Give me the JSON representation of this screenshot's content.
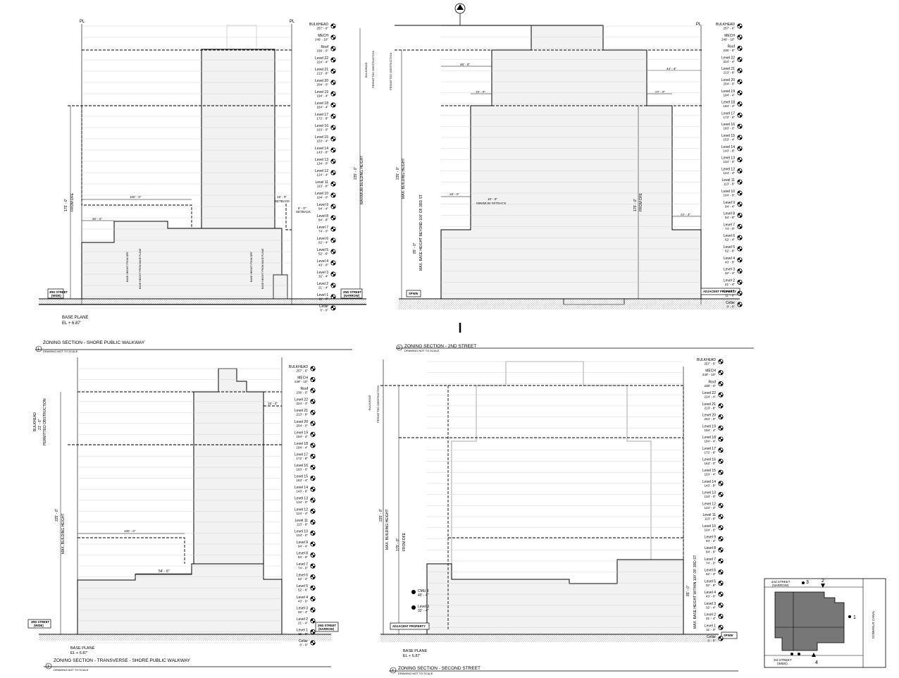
{
  "sheet": {
    "sections": [
      {
        "number": "1",
        "title": "ZONING SECTION - SHORE PUBLIC WALKWAY",
        "note": "DRAWING NOT TO SCALE"
      },
      {
        "number": "2",
        "title": "ZONING SECTION - 2ND STREET",
        "note": "DRAWING NOT TO SCALE"
      },
      {
        "number": "3",
        "title": "ZONING SECTION - TRANSVERSE - SHORE PUBLIC WALKWAY",
        "note": "DRAWING NOT TO SCALE"
      },
      {
        "number": "4",
        "title": "ZONING SECTION - SECOND STREET",
        "note": "DRAWING NOT TO SCALE"
      }
    ],
    "levels": [
      {
        "name": "BULKHEAD",
        "elev": "257' - 6\""
      },
      {
        "name": "MECH",
        "elev": "249' - 10\""
      },
      {
        "name": "Roof",
        "elev": "236' - 0\""
      },
      {
        "name": "Level 22",
        "elev": "224' - 4\""
      },
      {
        "name": "Level 21",
        "elev": "213' - 8\""
      },
      {
        "name": "Level 20",
        "elev": "204' - 0\""
      },
      {
        "name": "Level 19",
        "elev": "194' - 4\""
      },
      {
        "name": "Level 18",
        "elev": "184' - 4\""
      },
      {
        "name": "Level 17",
        "elev": "172' - 8\""
      },
      {
        "name": "Level 16",
        "elev": "163' - 0\""
      },
      {
        "name": "Level 15",
        "elev": "153' - 4\""
      },
      {
        "name": "Level 14",
        "elev": "143' - 8\""
      },
      {
        "name": "Level 13",
        "elev": "134' - 0\""
      },
      {
        "name": "Level 12",
        "elev": "124' - 4\""
      },
      {
        "name": "Level 11",
        "elev": "113' - 8\""
      },
      {
        "name": "Level 10",
        "elev": "104' - 0\""
      },
      {
        "name": "Level 9",
        "elev": "94' - 4\""
      },
      {
        "name": "Level 8",
        "elev": "84' - 8\""
      },
      {
        "name": "Level 7",
        "elev": "74' - 0\""
      },
      {
        "name": "Level 6",
        "elev": "62' - 4\""
      },
      {
        "name": "Level 5",
        "elev": "52' - 8\""
      },
      {
        "name": "Level 4",
        "elev": "43' - 0\""
      },
      {
        "name": "Level 3",
        "elev": "32' - 4\""
      },
      {
        "name": "Level 2",
        "elev": "21' - 4\""
      },
      {
        "name": "Level 1",
        "elev": "11' - 0\""
      },
      {
        "name": "Cellar",
        "elev": "0' - 0\""
      }
    ],
    "labels": {
      "pl": "PL",
      "base_plane": "BASE PLANE",
      "base_plane_el": "EL + 6.87'",
      "third_street": "3RD STREET",
      "wide": "(WIDE)",
      "second_street": "2ND STREET",
      "narrow": "(NARROW)",
      "setback": "SETBACK",
      "minimum_setback": "MINIMUM SETBACK",
      "spww": "SPWW",
      "adjacent_property": "ADJACENT PROPERTY",
      "max_building_height": "MAX. BUILDING HEIGHT",
      "maximum_building_height": "MAXIMUM BUILDING HEIGHT",
      "from_dfe": "FROM DFE",
      "permitted_obstruction": "PERMITTED OBSTRUCTION",
      "bulkhead": "BULKHEAD",
      "max_base_height_beyond": "MAX. BASE HEIGHT BEYOND 100' OF 3RD ST",
      "max_base_height_within": "MAX. BASE HEIGHT WITHIN 100' OF 3RD ST",
      "base_height_from_dfe": "BASE HEIGHT FROM DFE",
      "base_height_from_base_plane": "BASE HEIGHT FROM BASE PLANE",
      "gowanus_canal": "GOWANUS CANAL",
      "key_2nd": "2nd STREET",
      "key_narrow": "(NARROW)",
      "key_3rd": "3rd STREET",
      "key_wide": "(WIDE)"
    },
    "dims": {
      "h235": "235' - 0\"",
      "h225": "225' - 0\"",
      "h175": "175' - 0\"",
      "h85": "85' - 0\"",
      "d100": "100' - 0\"",
      "d30": "30' - 0\"",
      "d15": "15' - 0\"",
      "d8": "8' - 0\"",
      "d46": "46' - 0\"",
      "d44": "44' - 4\"",
      "d18": "18' - 0\"",
      "d22": "22' - 0\"",
      "d22b": "22' - 4\"",
      "d28": "28' - 0\"",
      "d10": "10' - 0\"",
      "d54": "54' - 6\"",
      "cmu": "CMU 3",
      "cmu_el": "40' - 4\"",
      "level3": "Level 3",
      "level3_el": "32' - 4\"",
      "bulkhead_dim": "21' - 6\""
    },
    "key_plan_marks": [
      "1",
      "2",
      "3",
      "4"
    ]
  }
}
